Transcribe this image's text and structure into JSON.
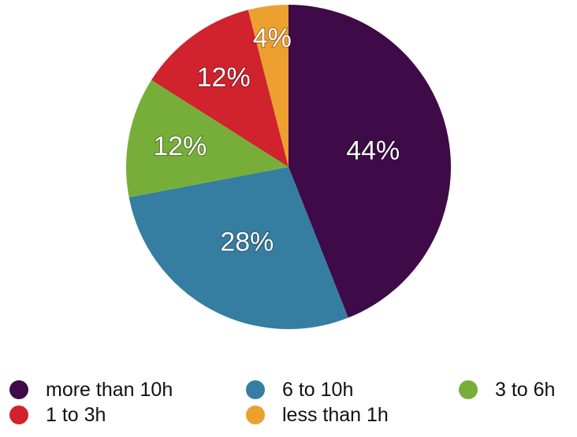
{
  "chart_data": {
    "type": "pie",
    "slices": [
      {
        "label": "more than 10h",
        "value": 44,
        "display": "44%",
        "color": "#3e0a47"
      },
      {
        "label": "6 to 10h",
        "value": 28,
        "display": "28%",
        "color": "#357ea1"
      },
      {
        "label": "3 to 6h",
        "value": 12,
        "display": "12%",
        "color": "#77ae3a"
      },
      {
        "label": "1 to 3h",
        "value": 12,
        "display": "12%",
        "color": "#d0232d"
      },
      {
        "label": "less than 1h",
        "value": 4,
        "display": "4%",
        "color": "#eda02f"
      }
    ],
    "legend": {
      "placement": "bottom",
      "entries": [
        "more than 10h",
        "6 to 10h",
        "3 to 6h",
        "1 to 3h",
        "less than 1h"
      ]
    }
  }
}
